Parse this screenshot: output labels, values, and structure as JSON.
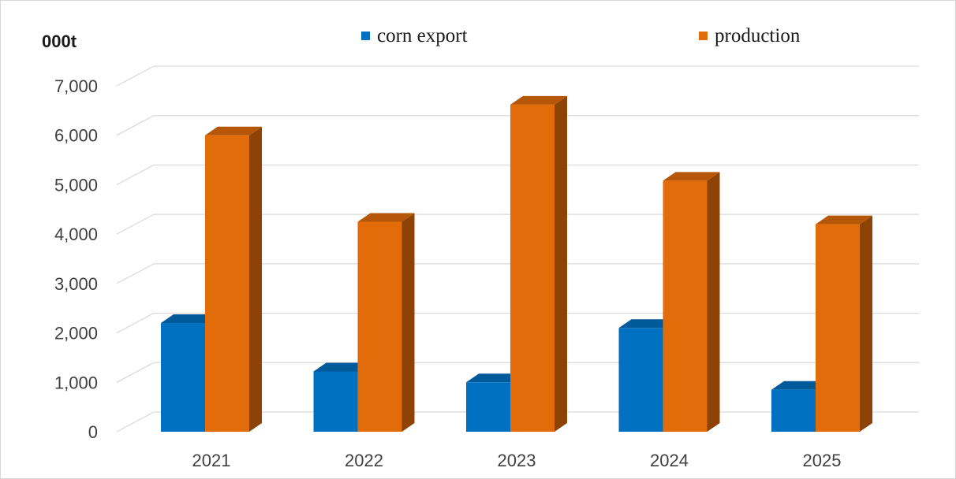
{
  "chart_data": {
    "type": "bar",
    "style": "3d-clustered-column",
    "unit_label": "000t",
    "categories": [
      "2021",
      "2022",
      "2023",
      "2024",
      "2025"
    ],
    "series": [
      {
        "name": "corn export",
        "color": "#0070C0",
        "values": [
          2200,
          1220,
          1000,
          2100,
          850
        ]
      },
      {
        "name": "production",
        "color": "#E36C0A",
        "values": [
          6000,
          4250,
          6620,
          5080,
          4200
        ]
      }
    ],
    "ylim": [
      0,
      7000
    ],
    "yticks": [
      "0",
      "1,000",
      "2,000",
      "3,000",
      "4,000",
      "5,000",
      "6,000",
      "7,000"
    ],
    "grid": true,
    "legend_position": "top"
  }
}
